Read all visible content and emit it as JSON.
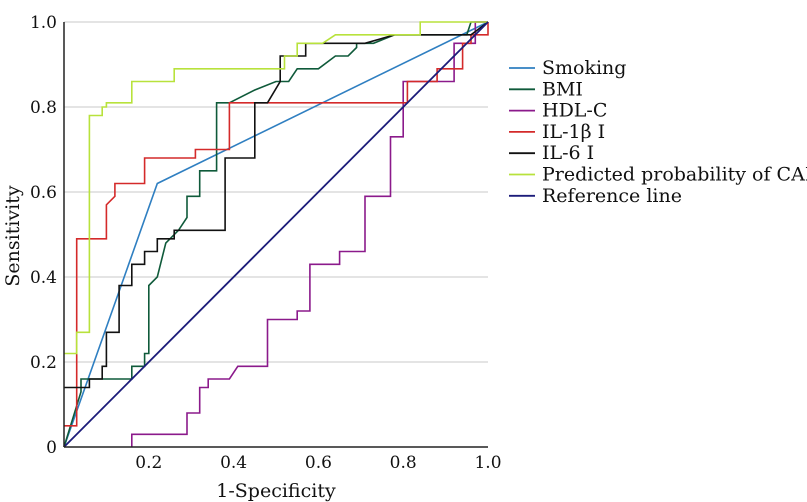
{
  "chart_data": {
    "type": "line",
    "title": "",
    "xlabel": "1-Specificity",
    "ylabel": "Sensitivity",
    "xlim": [
      0,
      1
    ],
    "ylim": [
      0,
      1
    ],
    "x_ticks": [
      "0.2",
      "0.4",
      "0.6",
      "0.8",
      "1.0"
    ],
    "y_ticks": [
      "0",
      "0.2",
      "0.4",
      "0.6",
      "0.8",
      "1.0"
    ],
    "grid": "horizontal",
    "legend_position": "right",
    "series": [
      {
        "name": "Smoking",
        "color": "#2f7fc1",
        "x": [
          0,
          0.22,
          1
        ],
        "y": [
          0,
          0.62,
          1
        ]
      },
      {
        "name": "BMI",
        "color": "#0f5a3a",
        "x": [
          0,
          0.04,
          0.04,
          0.07,
          0.07,
          0.16,
          0.16,
          0.19,
          0.19,
          0.2,
          0.2,
          0.22,
          0.24,
          0.27,
          0.29,
          0.29,
          0.32,
          0.32,
          0.36,
          0.36,
          0.39,
          0.39,
          0.45,
          0.5,
          0.5,
          0.53,
          0.55,
          0.6,
          0.64,
          0.67,
          0.69,
          0.69,
          0.73,
          0.78,
          0.8,
          0.85,
          0.88,
          0.92,
          0.95,
          0.96,
          0.97,
          0.98,
          1.0
        ],
        "y": [
          0,
          0.13,
          0.16,
          0.16,
          0.16,
          0.16,
          0.19,
          0.19,
          0.22,
          0.22,
          0.38,
          0.4,
          0.48,
          0.51,
          0.54,
          0.59,
          0.59,
          0.65,
          0.65,
          0.81,
          0.81,
          0.81,
          0.84,
          0.86,
          0.86,
          0.86,
          0.89,
          0.89,
          0.92,
          0.92,
          0.94,
          0.95,
          0.95,
          0.97,
          0.97,
          0.97,
          0.97,
          0.97,
          0.97,
          1.0,
          1.0,
          1.0,
          1.0
        ]
      },
      {
        "name": "HDL-C",
        "color": "#8b1a8b",
        "x": [
          0.16,
          0.16,
          0.29,
          0.29,
          0.32,
          0.32,
          0.34,
          0.34,
          0.36,
          0.36,
          0.39,
          0.39,
          0.41,
          0.41,
          0.48,
          0.48,
          0.55,
          0.55,
          0.58,
          0.58,
          0.61,
          0.61,
          0.65,
          0.65,
          0.71,
          0.71,
          0.77,
          0.77,
          0.8,
          0.8,
          0.81,
          0.81,
          0.86,
          0.86,
          0.88,
          0.88,
          0.92,
          0.92,
          0.95,
          0.95,
          0.97,
          0.97,
          1.0
        ],
        "y": [
          0,
          0.03,
          0.03,
          0.08,
          0.08,
          0.14,
          0.14,
          0.16,
          0.16,
          0.16,
          0.16,
          0.16,
          0.19,
          0.19,
          0.19,
          0.3,
          0.3,
          0.32,
          0.32,
          0.43,
          0.43,
          0.43,
          0.43,
          0.46,
          0.46,
          0.59,
          0.59,
          0.73,
          0.73,
          0.86,
          0.86,
          0.86,
          0.86,
          0.86,
          0.86,
          0.86,
          0.86,
          0.95,
          0.95,
          0.95,
          0.95,
          1.0,
          1.0
        ]
      },
      {
        "name": "IL-1β I",
        "color": "#d42a2a",
        "x": [
          0,
          0.03,
          0.03,
          0.1,
          0.1,
          0.12,
          0.12,
          0.19,
          0.19,
          0.31,
          0.31,
          0.35,
          0.35,
          0.39,
          0.39,
          0.81,
          0.81,
          0.84,
          0.84,
          0.88,
          0.88,
          0.91,
          0.91,
          0.94,
          0.94,
          0.96,
          0.96,
          1.0,
          1.0
        ],
        "y": [
          0.05,
          0.05,
          0.49,
          0.49,
          0.57,
          0.59,
          0.62,
          0.62,
          0.68,
          0.68,
          0.7,
          0.7,
          0.7,
          0.7,
          0.81,
          0.81,
          0.86,
          0.86,
          0.86,
          0.86,
          0.89,
          0.89,
          0.89,
          0.89,
          0.95,
          0.95,
          0.97,
          0.97,
          1.0
        ]
      },
      {
        "name": "IL-6 I",
        "color": "#111111",
        "x": [
          0,
          0.06,
          0.06,
          0.09,
          0.09,
          0.1,
          0.1,
          0.13,
          0.13,
          0.16,
          0.16,
          0.19,
          0.19,
          0.22,
          0.22,
          0.26,
          0.26,
          0.38,
          0.38,
          0.45,
          0.45,
          0.48,
          0.51,
          0.51,
          0.57,
          0.57,
          0.66,
          0.71,
          0.78,
          0.85,
          0.94,
          0.96,
          1.0
        ],
        "y": [
          0.14,
          0.14,
          0.16,
          0.16,
          0.19,
          0.19,
          0.27,
          0.27,
          0.38,
          0.38,
          0.43,
          0.43,
          0.46,
          0.46,
          0.49,
          0.49,
          0.51,
          0.51,
          0.68,
          0.68,
          0.81,
          0.81,
          0.86,
          0.92,
          0.92,
          0.95,
          0.95,
          0.95,
          0.97,
          0.97,
          0.97,
          0.97,
          1.0
        ]
      },
      {
        "name": "Predicted probability of CAD",
        "color": "#b8e23c",
        "x": [
          0,
          0.03,
          0.03,
          0.06,
          0.06,
          0.09,
          0.09,
          0.1,
          0.1,
          0.16,
          0.16,
          0.26,
          0.26,
          0.52,
          0.52,
          0.55,
          0.55,
          0.61,
          0.61,
          0.64,
          0.64,
          0.84,
          0.84,
          1.0
        ],
        "y": [
          0.22,
          0.22,
          0.27,
          0.27,
          0.78,
          0.78,
          0.8,
          0.8,
          0.81,
          0.81,
          0.86,
          0.86,
          0.89,
          0.89,
          0.92,
          0.92,
          0.95,
          0.95,
          0.95,
          0.97,
          0.97,
          0.97,
          1.0,
          1.0
        ]
      },
      {
        "name": "Reference line",
        "color": "#1c1c7a",
        "x": [
          0,
          1
        ],
        "y": [
          0,
          1
        ]
      }
    ]
  }
}
